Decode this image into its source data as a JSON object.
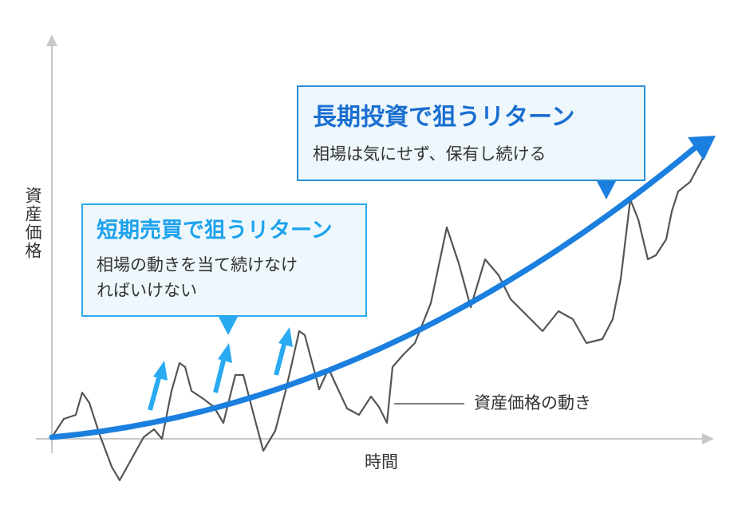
{
  "y_axis_label": "資産価格",
  "x_axis_label": "時間",
  "long_term": {
    "title": "長期投資で狙うリターン",
    "text": "相場は気にせず、保有し続ける"
  },
  "short_term": {
    "title": "短期売買で狙うリターン",
    "lines": [
      "相場の動きを当て続けなけ",
      "ればいけない"
    ]
  },
  "price_label": "資産価格の動き"
}
